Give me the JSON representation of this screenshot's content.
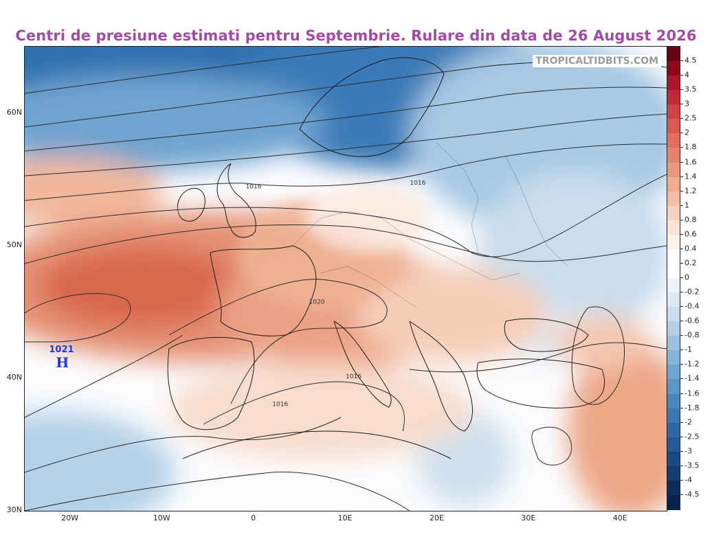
{
  "title": "Centri de presiune estimati pentru Septembrie. Rulare din data de 26 August 2026",
  "watermark": "TROPICALTIDBITS.COM",
  "high_center": {
    "label": "H",
    "value": "1021",
    "lat": 41.5,
    "lon": -21
  },
  "map": {
    "lon_range": [
      -25,
      45
    ],
    "lat_range": [
      30,
      65
    ],
    "lat_ticks": [
      "60N",
      "50N",
      "40N",
      "30N"
    ],
    "lon_ticks": [
      "20W",
      "10W",
      "0",
      "10E",
      "20E",
      "30E",
      "40E"
    ]
  },
  "isobar_labels": [
    {
      "text": "1016",
      "lon": -0.9,
      "lat": 54.3
    },
    {
      "text": "1016",
      "lon": 17,
      "lat": 54.6
    },
    {
      "text": "1020",
      "lon": 6,
      "lat": 45.6
    },
    {
      "text": "1016",
      "lon": 10,
      "lat": 40.0
    },
    {
      "text": "1016",
      "lon": 2,
      "lat": 37.9
    }
  ],
  "colorbar": {
    "labels": [
      "4.5",
      "4",
      "3.5",
      "3",
      "2.5",
      "2",
      "1.8",
      "1.6",
      "1.4",
      "1.2",
      "1",
      "0.8",
      "0.6",
      "0.4",
      "0.2",
      "0",
      "-0.2",
      "-0.4",
      "-0.6",
      "-0.8",
      "-1",
      "-1.2",
      "-1.4",
      "-1.6",
      "-1.8",
      "-2",
      "-2.5",
      "-3",
      "-3.5",
      "-4",
      "-4.5"
    ],
    "colors": [
      "#6b0011",
      "#8c0a1c",
      "#a8172a",
      "#be2a39",
      "#ce4347",
      "#d95a55",
      "#e06e62",
      "#e6826f",
      "#ec977f",
      "#f1ab92",
      "#f5bfa6",
      "#f8d2be",
      "#fbe3d6",
      "#fdf1ea",
      "#ffffff",
      "#ffffff",
      "#edf3f8",
      "#dce9f3",
      "#c8dded",
      "#b3d0e6",
      "#9cc2df",
      "#86b4d8",
      "#70a5cf",
      "#5b96c6",
      "#4a87bd",
      "#3c77b2",
      "#2f67a4",
      "#255895",
      "#1c4883",
      "#163b70",
      "#0f2d5c",
      "#0a2248"
    ]
  }
}
